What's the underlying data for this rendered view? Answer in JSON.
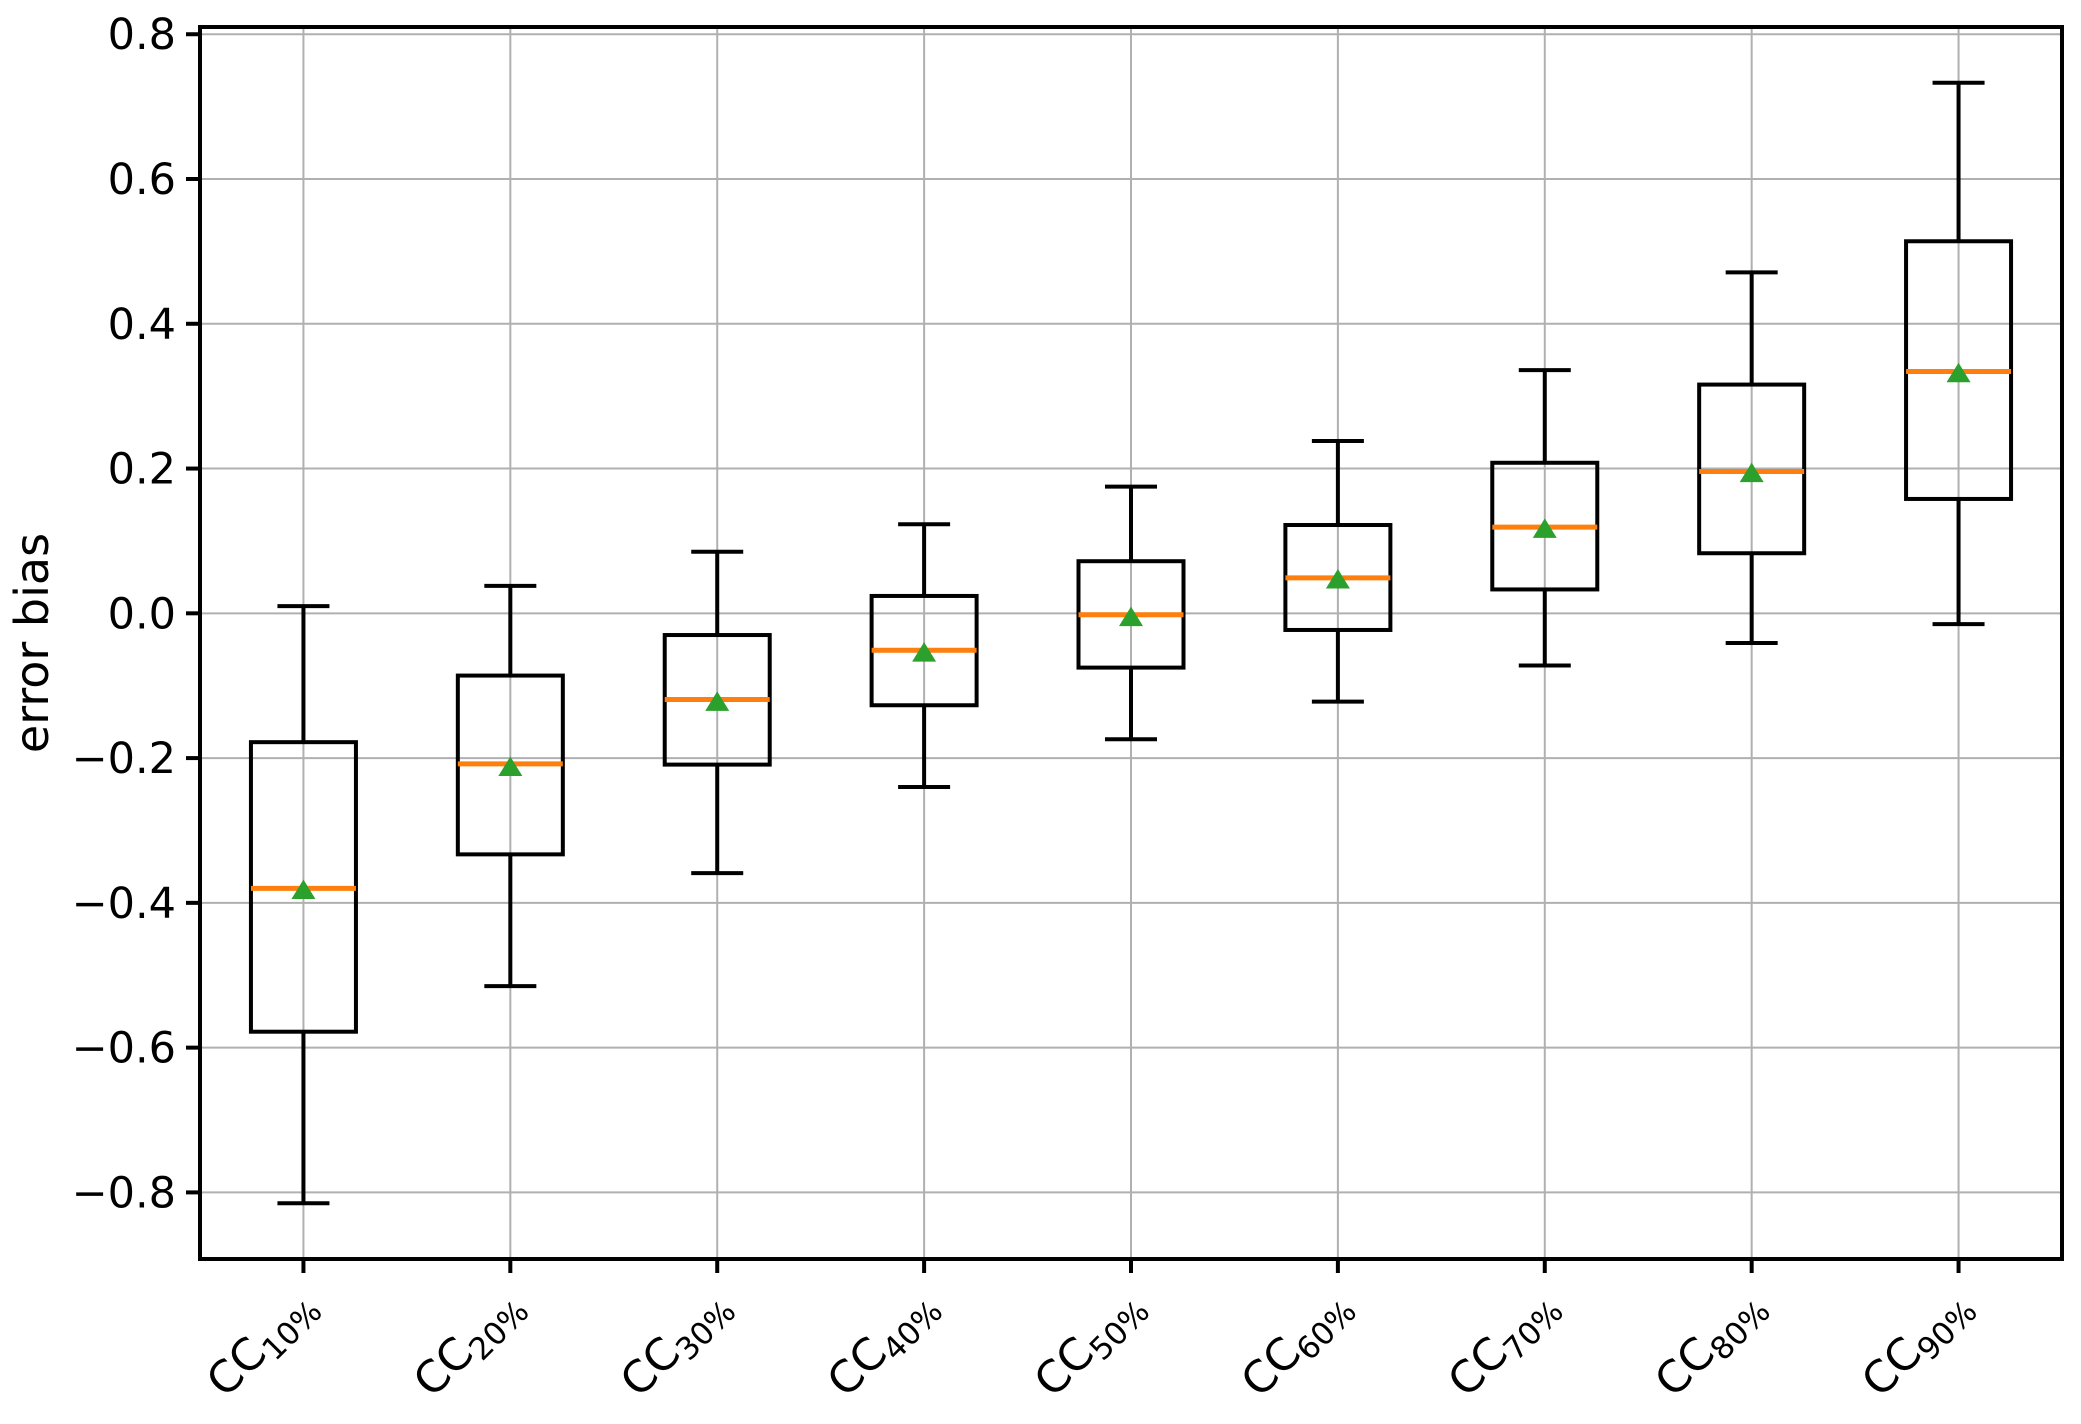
{
  "figure": {
    "background": "#ffffff"
  },
  "chart_data": {
    "type": "boxplot",
    "title": "",
    "xlabel": "",
    "ylabel": "error bias",
    "ylim": [
      -0.892,
      0.81
    ],
    "yticks": [
      0.8,
      0.6,
      0.4,
      0.2,
      0.0,
      -0.2,
      -0.4,
      -0.6,
      -0.8
    ],
    "yticklabels": [
      "0.8",
      "0.6",
      "0.4",
      "0.2",
      "0.0",
      "−0.2",
      "−0.4",
      "−0.6",
      "−0.8"
    ],
    "grid": true,
    "legend": "none",
    "colors": {
      "box_line": "#000000",
      "whisker_line": "#000000",
      "median_line": "#ff7f0e",
      "mean_marker": "#2ca02c",
      "grid_line": "#b0b0b0",
      "spine": "#000000"
    },
    "categories": [
      {
        "prefix": "CC",
        "subscript": "10%",
        "label": "CC10%"
      },
      {
        "prefix": "CC",
        "subscript": "20%",
        "label": "CC20%"
      },
      {
        "prefix": "CC",
        "subscript": "30%",
        "label": "CC30%"
      },
      {
        "prefix": "CC",
        "subscript": "40%",
        "label": "CC40%"
      },
      {
        "prefix": "CC",
        "subscript": "50%",
        "label": "CC50%"
      },
      {
        "prefix": "CC",
        "subscript": "60%",
        "label": "CC60%"
      },
      {
        "prefix": "CC",
        "subscript": "70%",
        "label": "CC70%"
      },
      {
        "prefix": "CC",
        "subscript": "80%",
        "label": "CC80%"
      },
      {
        "prefix": "CC",
        "subscript": "90%",
        "label": "CC90%"
      }
    ],
    "boxes": [
      {
        "label": "CC10%",
        "whislo": -0.815,
        "q1": -0.578,
        "med": -0.38,
        "mean": -0.383,
        "q3": -0.178,
        "whishi": 0.01
      },
      {
        "label": "CC20%",
        "whislo": -0.515,
        "q1": -0.333,
        "med": -0.208,
        "mean": -0.213,
        "q3": -0.086,
        "whishi": 0.038
      },
      {
        "label": "CC30%",
        "whislo": -0.359,
        "q1": -0.209,
        "med": -0.119,
        "mean": -0.123,
        "q3": -0.03,
        "whishi": 0.085
      },
      {
        "label": "CC40%",
        "whislo": -0.24,
        "q1": -0.127,
        "med": -0.051,
        "mean": -0.055,
        "q3": 0.024,
        "whishi": 0.123
      },
      {
        "label": "CC50%",
        "whislo": -0.174,
        "q1": -0.075,
        "med": -0.002,
        "mean": -0.006,
        "q3": 0.072,
        "whishi": 0.175
      },
      {
        "label": "CC60%",
        "whislo": -0.122,
        "q1": -0.023,
        "med": 0.049,
        "mean": 0.046,
        "q3": 0.122,
        "whishi": 0.238
      },
      {
        "label": "CC70%",
        "whislo": -0.072,
        "q1": 0.033,
        "med": 0.119,
        "mean": 0.116,
        "q3": 0.208,
        "whishi": 0.336
      },
      {
        "label": "CC80%",
        "whislo": -0.041,
        "q1": 0.083,
        "med": 0.196,
        "mean": 0.193,
        "q3": 0.316,
        "whishi": 0.471
      },
      {
        "label": "CC90%",
        "whislo": -0.015,
        "q1": 0.158,
        "med": 0.334,
        "mean": 0.331,
        "q3": 0.514,
        "whishi": 0.733
      }
    ]
  }
}
